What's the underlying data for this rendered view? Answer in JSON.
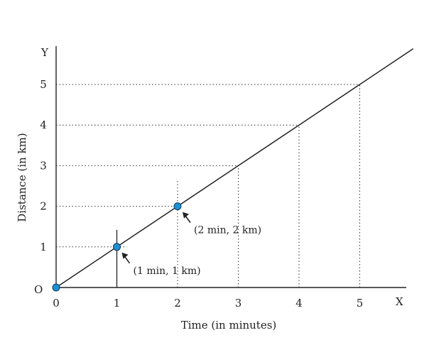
{
  "chart_data": {
    "type": "line",
    "title": "",
    "xlabel": "Time (in minutes)",
    "ylabel": "Distance (in km)",
    "x_axis_letter": "X",
    "y_axis_letter": "Y",
    "origin_label": "O",
    "xlim": [
      0,
      6
    ],
    "ylim": [
      0,
      6
    ],
    "x_ticks": [
      0,
      1,
      2,
      3,
      4,
      5
    ],
    "y_ticks": [
      1,
      2,
      3,
      4,
      5
    ],
    "grid": "dotted guide lines from the line to each axis",
    "series": [
      {
        "x": [
          0,
          1,
          2,
          3,
          4,
          5,
          5.88
        ],
        "y": [
          0,
          1,
          2,
          3,
          4,
          5,
          5.88
        ],
        "color": "#222222"
      }
    ],
    "highlighted_points": [
      {
        "x": 0,
        "y": 0,
        "color": "#1f8fd1"
      },
      {
        "x": 1,
        "y": 1,
        "color": "#1f8fd1"
      },
      {
        "x": 2,
        "y": 2,
        "color": "#1f8fd1"
      }
    ],
    "annotations": [
      {
        "x": 1,
        "y": 1,
        "text": "(1 min, 1 km)"
      },
      {
        "x": 2,
        "y": 2,
        "text": "(2 min, 2 km)"
      }
    ]
  }
}
